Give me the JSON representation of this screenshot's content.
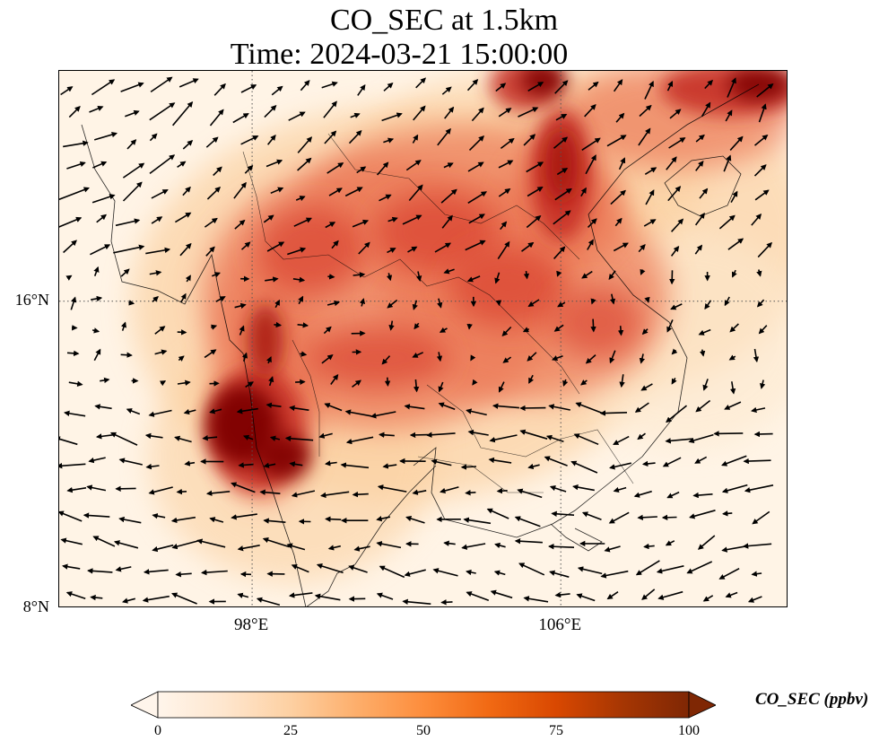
{
  "title": {
    "line1": "CO_SEC at 1.5km",
    "line2": "Time: 2024-03-21 15:00:00"
  },
  "map": {
    "lat_ticks": [
      {
        "label": "16°N",
        "lat": 16
      },
      {
        "label": "8°N",
        "lat": 8
      }
    ],
    "lon_ticks": [
      {
        "label": "98°E",
        "lon": 98
      },
      {
        "label": "106°E",
        "lon": 106
      }
    ],
    "extent": {
      "lon_min": 93,
      "lon_max": 111.9,
      "lat_min": 8,
      "lat_max": 22
    },
    "gridlines": true,
    "vector_field": "wind arrows (westerly/south-westerly in north, easterly in south)"
  },
  "colorbar": {
    "label": "CO_SEC (ppbv)",
    "min": 0,
    "max": 100,
    "extend": "both",
    "ticks": [
      {
        "value": 0,
        "label": "0"
      },
      {
        "value": 25,
        "label": "25"
      },
      {
        "value": 50,
        "label": "50"
      },
      {
        "value": 75,
        "label": "75"
      },
      {
        "value": 100,
        "label": "100"
      }
    ],
    "colors": [
      "#fff5eb",
      "#fee6ce",
      "#fdd0a2",
      "#fdae6b",
      "#fd8d3c",
      "#f16913",
      "#d94801",
      "#a63603",
      "#7f2704"
    ],
    "map_colors": [
      "#fff5eb",
      "#fde8cd",
      "#fbd0a0",
      "#f6a878",
      "#ec7a58",
      "#dc4a36",
      "#c42a20",
      "#a8130f",
      "#7f0000"
    ]
  }
}
